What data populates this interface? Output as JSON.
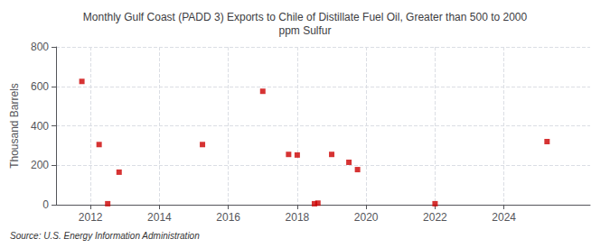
{
  "chart_data": {
    "type": "scatter",
    "title": "Monthly Gulf Coast (PADD 3) Exports to Chile of Distillate Fuel Oil, Greater than 500 to 2000\nppm Sulfur",
    "ylabel": "Thousand Barrels",
    "source": "Source: U.S. Energy Information Administration",
    "x": [
      2011.75,
      2012.25,
      2012.5,
      2012.83,
      2015.25,
      2017.0,
      2017.75,
      2018.0,
      2018.5,
      2018.6,
      2019.0,
      2019.5,
      2019.75,
      2022.0,
      2025.25
    ],
    "values": [
      625,
      305,
      5,
      165,
      305,
      575,
      255,
      252,
      5,
      8,
      255,
      215,
      178,
      5,
      320
    ],
    "color": "#cc0000",
    "marker": "square",
    "xlim": [
      2011.0,
      2026.5
    ],
    "xticks": [
      2012,
      2014,
      2016,
      2018,
      2020,
      2022,
      2024
    ],
    "ylim": [
      0,
      800
    ],
    "yticks": [
      0,
      200,
      400,
      600,
      800
    ],
    "grid": true
  }
}
